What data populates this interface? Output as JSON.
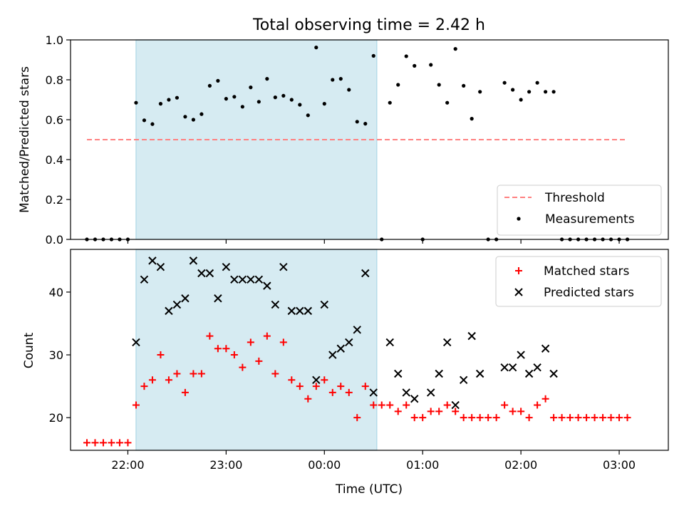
{
  "figure": {
    "title": "Total observing time = 2.42 h",
    "xlabel": "Time (UTC)"
  },
  "colors": {
    "shade": "#add8e6",
    "threshold": "#ff8080",
    "measurement": "#000000",
    "matched": "#ff0000",
    "predicted": "#000000"
  },
  "chart_data": [
    {
      "type": "scatter",
      "panel": "top",
      "ylabel": "Matched/Predicted stars",
      "ylim": [
        0,
        1.0
      ],
      "yticks": [
        0.0,
        0.2,
        0.4,
        0.6,
        0.8,
        1.0
      ],
      "ytick_labels": [
        "0.0",
        "0.2",
        "0.4",
        "0.6",
        "0.8",
        "1.0"
      ],
      "shaded_interval": [
        "22:05",
        "00:32"
      ],
      "threshold": {
        "name": "Threshold",
        "y": 0.5,
        "x": [
          "21:35",
          "03:05"
        ]
      },
      "legend": {
        "placement": "lower-right",
        "entries": [
          "Threshold",
          "Measurements"
        ]
      },
      "series": [
        {
          "name": "Measurements",
          "points": [
            [
              "21:35",
              0
            ],
            [
              "21:40",
              0
            ],
            [
              "21:45",
              0
            ],
            [
              "21:50",
              0
            ],
            [
              "21:55",
              0
            ],
            [
              "22:00",
              0
            ],
            [
              "22:05",
              0.685
            ],
            [
              "22:10",
              0.597
            ],
            [
              "22:15",
              0.578
            ],
            [
              "22:20",
              0.68
            ],
            [
              "22:25",
              0.7
            ],
            [
              "22:30",
              0.71
            ],
            [
              "22:35",
              0.615
            ],
            [
              "22:40",
              0.6
            ],
            [
              "22:45",
              0.628
            ],
            [
              "22:50",
              0.77
            ],
            [
              "22:55",
              0.795
            ],
            [
              "23:00",
              0.705
            ],
            [
              "23:05",
              0.715
            ],
            [
              "23:10",
              0.665
            ],
            [
              "23:15",
              0.762
            ],
            [
              "23:20",
              0.69
            ],
            [
              "23:25",
              0.805
            ],
            [
              "23:30",
              0.712
            ],
            [
              "23:35",
              0.72
            ],
            [
              "23:40",
              0.7
            ],
            [
              "23:45",
              0.675
            ],
            [
              "23:50",
              0.622
            ],
            [
              "23:55",
              0.962
            ],
            [
              "00:00",
              0.68
            ],
            [
              "00:05",
              0.8
            ],
            [
              "00:10",
              0.805
            ],
            [
              "00:15",
              0.75
            ],
            [
              "00:20",
              0.59
            ],
            [
              "00:25",
              0.58
            ],
            [
              "00:30",
              0.92
            ],
            [
              "00:35",
              0
            ],
            [
              "00:40",
              0.685
            ],
            [
              "00:45",
              0.775
            ],
            [
              "00:50",
              0.918
            ],
            [
              "00:55",
              0.87
            ],
            [
              "01:00",
              0
            ],
            [
              "01:05",
              0.875
            ],
            [
              "01:10",
              0.775
            ],
            [
              "01:15",
              0.685
            ],
            [
              "01:20",
              0.955
            ],
            [
              "01:25",
              0.77
            ],
            [
              "01:30",
              0.605
            ],
            [
              "01:35",
              0.74
            ],
            [
              "01:40",
              0
            ],
            [
              "01:45",
              0
            ],
            [
              "01:50",
              0.785
            ],
            [
              "01:55",
              0.75
            ],
            [
              "02:00",
              0.7
            ],
            [
              "02:05",
              0.74
            ],
            [
              "02:10",
              0.785
            ],
            [
              "02:15",
              0.74
            ],
            [
              "02:20",
              0.74
            ],
            [
              "02:25",
              0
            ],
            [
              "02:30",
              0
            ],
            [
              "02:35",
              0
            ],
            [
              "02:40",
              0
            ],
            [
              "02:45",
              0
            ],
            [
              "02:50",
              0
            ],
            [
              "02:55",
              0
            ],
            [
              "03:00",
              0
            ],
            [
              "03:05",
              0
            ]
          ]
        }
      ]
    },
    {
      "type": "scatter",
      "panel": "bottom",
      "ylabel": "Count",
      "ylim": [
        14.8,
        46.8
      ],
      "yticks": [
        20,
        30,
        40
      ],
      "ytick_labels": [
        "20",
        "30",
        "40"
      ],
      "xlim": [
        "21:25",
        "03:30"
      ],
      "xticks": [
        "22:00",
        "23:00",
        "00:00",
        "01:00",
        "02:00",
        "03:00"
      ],
      "shaded_interval": [
        "22:05",
        "00:32"
      ],
      "legend": {
        "placement": "upper-right",
        "entries": [
          "Matched stars",
          "Predicted stars"
        ]
      },
      "series": [
        {
          "name": "Matched stars",
          "marker": "plus",
          "points": [
            [
              "21:35",
              16
            ],
            [
              "21:40",
              16
            ],
            [
              "21:45",
              16
            ],
            [
              "21:50",
              16
            ],
            [
              "21:55",
              16
            ],
            [
              "22:00",
              16
            ],
            [
              "22:05",
              22
            ],
            [
              "22:10",
              25
            ],
            [
              "22:15",
              26
            ],
            [
              "22:20",
              30
            ],
            [
              "22:25",
              26
            ],
            [
              "22:30",
              27
            ],
            [
              "22:35",
              24
            ],
            [
              "22:40",
              27
            ],
            [
              "22:45",
              27
            ],
            [
              "22:50",
              33
            ],
            [
              "22:55",
              31
            ],
            [
              "23:00",
              31
            ],
            [
              "23:05",
              30
            ],
            [
              "23:10",
              28
            ],
            [
              "23:15",
              32
            ],
            [
              "23:20",
              29
            ],
            [
              "23:25",
              33
            ],
            [
              "23:30",
              27
            ],
            [
              "23:35",
              32
            ],
            [
              "23:40",
              26
            ],
            [
              "23:45",
              25
            ],
            [
              "23:50",
              23
            ],
            [
              "23:55",
              25
            ],
            [
              "00:00",
              26
            ],
            [
              "00:05",
              24
            ],
            [
              "00:10",
              25
            ],
            [
              "00:15",
              24
            ],
            [
              "00:20",
              20
            ],
            [
              "00:25",
              25
            ],
            [
              "00:30",
              22
            ],
            [
              "00:35",
              22
            ],
            [
              "00:40",
              22
            ],
            [
              "00:45",
              21
            ],
            [
              "00:50",
              22
            ],
            [
              "00:55",
              20
            ],
            [
              "01:00",
              20
            ],
            [
              "01:05",
              21
            ],
            [
              "01:10",
              21
            ],
            [
              "01:15",
              22
            ],
            [
              "01:20",
              21
            ],
            [
              "01:25",
              20
            ],
            [
              "01:30",
              20
            ],
            [
              "01:35",
              20
            ],
            [
              "01:40",
              20
            ],
            [
              "01:45",
              20
            ],
            [
              "01:50",
              22
            ],
            [
              "01:55",
              21
            ],
            [
              "02:00",
              21
            ],
            [
              "02:05",
              20
            ],
            [
              "02:10",
              22
            ],
            [
              "02:15",
              23
            ],
            [
              "02:20",
              20
            ],
            [
              "02:25",
              20
            ],
            [
              "02:30",
              20
            ],
            [
              "02:35",
              20
            ],
            [
              "02:40",
              20
            ],
            [
              "02:45",
              20
            ],
            [
              "02:50",
              20
            ],
            [
              "02:55",
              20
            ],
            [
              "03:00",
              20
            ],
            [
              "03:05",
              20
            ]
          ]
        },
        {
          "name": "Predicted stars",
          "marker": "x",
          "points": [
            [
              "22:05",
              32
            ],
            [
              "22:10",
              42
            ],
            [
              "22:15",
              45
            ],
            [
              "22:20",
              44
            ],
            [
              "22:25",
              37
            ],
            [
              "22:30",
              38
            ],
            [
              "22:35",
              39
            ],
            [
              "22:40",
              45
            ],
            [
              "22:45",
              43
            ],
            [
              "22:50",
              43
            ],
            [
              "22:55",
              39
            ],
            [
              "23:00",
              44
            ],
            [
              "23:05",
              42
            ],
            [
              "23:10",
              42
            ],
            [
              "23:15",
              42
            ],
            [
              "23:20",
              42
            ],
            [
              "23:25",
              41
            ],
            [
              "23:30",
              38
            ],
            [
              "23:35",
              44
            ],
            [
              "23:40",
              37
            ],
            [
              "23:45",
              37
            ],
            [
              "23:50",
              37
            ],
            [
              "23:55",
              26
            ],
            [
              "00:00",
              38
            ],
            [
              "00:05",
              30
            ],
            [
              "00:10",
              31
            ],
            [
              "00:15",
              32
            ],
            [
              "00:20",
              34
            ],
            [
              "00:25",
              43
            ],
            [
              "00:30",
              24
            ],
            [
              "00:40",
              32
            ],
            [
              "00:45",
              27
            ],
            [
              "00:50",
              24
            ],
            [
              "00:55",
              23
            ],
            [
              "01:05",
              24
            ],
            [
              "01:10",
              27
            ],
            [
              "01:15",
              32
            ],
            [
              "01:20",
              22
            ],
            [
              "01:25",
              26
            ],
            [
              "01:30",
              33
            ],
            [
              "01:35",
              27
            ],
            [
              "01:50",
              28
            ],
            [
              "01:55",
              28
            ],
            [
              "02:00",
              30
            ],
            [
              "02:05",
              27
            ],
            [
              "02:10",
              28
            ],
            [
              "02:15",
              31
            ],
            [
              "02:20",
              27
            ]
          ]
        }
      ]
    }
  ]
}
